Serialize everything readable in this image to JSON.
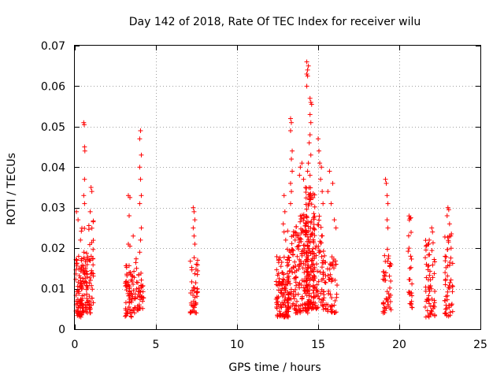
{
  "chart_data": {
    "type": "scatter",
    "title": "Day 142 of 2018, Rate Of TEC Index for receiver wilu",
    "xlabel": "GPS time / hours",
    "ylabel": "ROTI / TECUs",
    "xlim": [
      0,
      25
    ],
    "ylim": [
      0,
      0.07
    ],
    "xticks": [
      0,
      5,
      10,
      15,
      20,
      25
    ],
    "xtick_labels": [
      "0",
      "5",
      "10",
      "15",
      "20",
      "25"
    ],
    "yticks": [
      0,
      0.01,
      0.02,
      0.03,
      0.04,
      0.05,
      0.06,
      0.07
    ],
    "ytick_labels": [
      "0",
      "0.01",
      "0.02",
      "0.03",
      "0.04",
      "0.05",
      "0.06",
      "0.07"
    ],
    "grid": true,
    "marker": "+",
    "color": "#ff0000",
    "clusters": [
      {
        "x_range": [
          0.05,
          0.45
        ],
        "y_range": [
          0.003,
          0.018
        ],
        "count": 70,
        "outliers": [
          [
            0.1,
            0.029
          ],
          [
            0.2,
            0.027
          ],
          [
            0.35,
            0.022
          ]
        ]
      },
      {
        "x_range": [
          0.4,
          0.8
        ],
        "y_range": [
          0.004,
          0.025
        ],
        "count": 60,
        "outliers": [
          [
            0.55,
            0.051
          ],
          [
            0.58,
            0.0505
          ],
          [
            0.6,
            0.045
          ],
          [
            0.62,
            0.044
          ],
          [
            0.6,
            0.037
          ],
          [
            0.55,
            0.033
          ],
          [
            0.6,
            0.031
          ]
        ]
      },
      {
        "x_range": [
          0.8,
          1.15
        ],
        "y_range": [
          0.004,
          0.027
        ],
        "count": 40,
        "outliers": [
          [
            1.0,
            0.035
          ],
          [
            1.05,
            0.034
          ],
          [
            0.95,
            0.029
          ]
        ]
      },
      {
        "x_range": [
          3.1,
          3.5
        ],
        "y_range": [
          0.003,
          0.016
        ],
        "count": 50,
        "outliers": [
          [
            3.3,
            0.033
          ],
          [
            3.4,
            0.0325
          ],
          [
            3.35,
            0.028
          ],
          [
            3.3,
            0.021
          ],
          [
            3.4,
            0.0205
          ]
        ]
      },
      {
        "x_range": [
          3.5,
          3.9
        ],
        "y_range": [
          0.004,
          0.018
        ],
        "count": 30,
        "outliers": [
          [
            3.6,
            0.023
          ]
        ]
      },
      {
        "x_range": [
          3.9,
          4.25
        ],
        "y_range": [
          0.005,
          0.015
        ],
        "count": 30,
        "outliers": [
          [
            4.05,
            0.049
          ],
          [
            4.0,
            0.047
          ],
          [
            4.1,
            0.043
          ],
          [
            4.0,
            0.04
          ],
          [
            4.05,
            0.037
          ],
          [
            4.1,
            0.033
          ],
          [
            4.0,
            0.031
          ],
          [
            4.1,
            0.025
          ],
          [
            4.05,
            0.022
          ],
          [
            4.0,
            0.019
          ]
        ]
      },
      {
        "x_range": [
          7.1,
          7.6
        ],
        "y_range": [
          0.004,
          0.018
        ],
        "count": 45,
        "outliers": [
          [
            7.3,
            0.03
          ],
          [
            7.35,
            0.029
          ],
          [
            7.4,
            0.027
          ],
          [
            7.3,
            0.025
          ],
          [
            7.35,
            0.023
          ],
          [
            7.4,
            0.021
          ]
        ]
      },
      {
        "x_range": [
          12.4,
          13.2
        ],
        "y_range": [
          0.003,
          0.018
        ],
        "count": 110,
        "outliers": [
          [
            12.9,
            0.033
          ],
          [
            12.95,
            0.029
          ],
          [
            12.85,
            0.026
          ],
          [
            12.9,
            0.024
          ],
          [
            13.0,
            0.022
          ]
        ]
      },
      {
        "x_range": [
          13.1,
          13.6
        ],
        "y_range": [
          0.005,
          0.025
        ],
        "count": 60,
        "outliers": [
          [
            13.3,
            0.052
          ],
          [
            13.35,
            0.051
          ],
          [
            13.3,
            0.049
          ],
          [
            13.4,
            0.044
          ],
          [
            13.35,
            0.042
          ],
          [
            13.4,
            0.039
          ],
          [
            13.3,
            0.036
          ],
          [
            13.35,
            0.034
          ],
          [
            13.3,
            0.031
          ]
        ]
      },
      {
        "x_range": [
          13.6,
          14.4
        ],
        "y_range": [
          0.004,
          0.03
        ],
        "count": 130,
        "outliers": [
          [
            13.9,
            0.04
          ],
          [
            14.0,
            0.041
          ],
          [
            13.85,
            0.038
          ],
          [
            14.1,
            0.037
          ]
        ]
      },
      {
        "x_range": [
          14.2,
          14.8
        ],
        "y_range": [
          0.005,
          0.035
        ],
        "count": 140,
        "outliers": [
          [
            14.3,
            0.066
          ],
          [
            14.35,
            0.064
          ],
          [
            14.3,
            0.063
          ],
          [
            14.35,
            0.0625
          ],
          [
            14.4,
            0.065
          ],
          [
            14.3,
            0.06
          ],
          [
            14.5,
            0.057
          ],
          [
            14.55,
            0.056
          ],
          [
            14.6,
            0.0555
          ],
          [
            14.5,
            0.053
          ],
          [
            14.55,
            0.051
          ],
          [
            14.5,
            0.048
          ],
          [
            14.45,
            0.046
          ],
          [
            14.55,
            0.043
          ],
          [
            14.4,
            0.041
          ],
          [
            14.35,
            0.039
          ],
          [
            14.5,
            0.038
          ]
        ]
      },
      {
        "x_range": [
          14.7,
          15.4
        ],
        "y_range": [
          0.005,
          0.028
        ],
        "count": 70,
        "outliers": [
          [
            15.0,
            0.047
          ],
          [
            15.05,
            0.044
          ],
          [
            15.1,
            0.041
          ],
          [
            15.2,
            0.04
          ],
          [
            15.15,
            0.037
          ],
          [
            15.25,
            0.034
          ],
          [
            15.3,
            0.031
          ]
        ]
      },
      {
        "x_range": [
          15.3,
          16.2
        ],
        "y_range": [
          0.004,
          0.018
        ],
        "count": 60,
        "outliers": [
          [
            15.7,
            0.039
          ],
          [
            15.9,
            0.036
          ],
          [
            15.6,
            0.034
          ],
          [
            15.8,
            0.031
          ],
          [
            16.0,
            0.027
          ],
          [
            16.1,
            0.025
          ]
        ]
      },
      {
        "x_range": [
          19.0,
          19.5
        ],
        "y_range": [
          0.004,
          0.02
        ],
        "count": 45,
        "outliers": [
          [
            19.15,
            0.037
          ],
          [
            19.2,
            0.036
          ],
          [
            19.25,
            0.033
          ],
          [
            19.3,
            0.031
          ],
          [
            19.25,
            0.027
          ],
          [
            19.3,
            0.025
          ]
        ]
      },
      {
        "x_range": [
          20.5,
          20.8
        ],
        "y_range": [
          0.005,
          0.028
        ],
        "count": 25,
        "outliers": [
          [
            20.6,
            0.02
          ],
          [
            20.65,
            0.015
          ]
        ]
      },
      {
        "x_range": [
          21.6,
          22.2
        ],
        "y_range": [
          0.003,
          0.022
        ],
        "count": 60,
        "outliers": [
          [
            22.0,
            0.025
          ],
          [
            22.05,
            0.024
          ],
          [
            21.85,
            0.022
          ]
        ]
      },
      {
        "x_range": [
          22.8,
          23.3
        ],
        "y_range": [
          0.003,
          0.024
        ],
        "count": 55,
        "outliers": [
          [
            23.0,
            0.03
          ],
          [
            23.05,
            0.0295
          ],
          [
            22.95,
            0.028
          ],
          [
            23.1,
            0.026
          ]
        ]
      }
    ]
  }
}
